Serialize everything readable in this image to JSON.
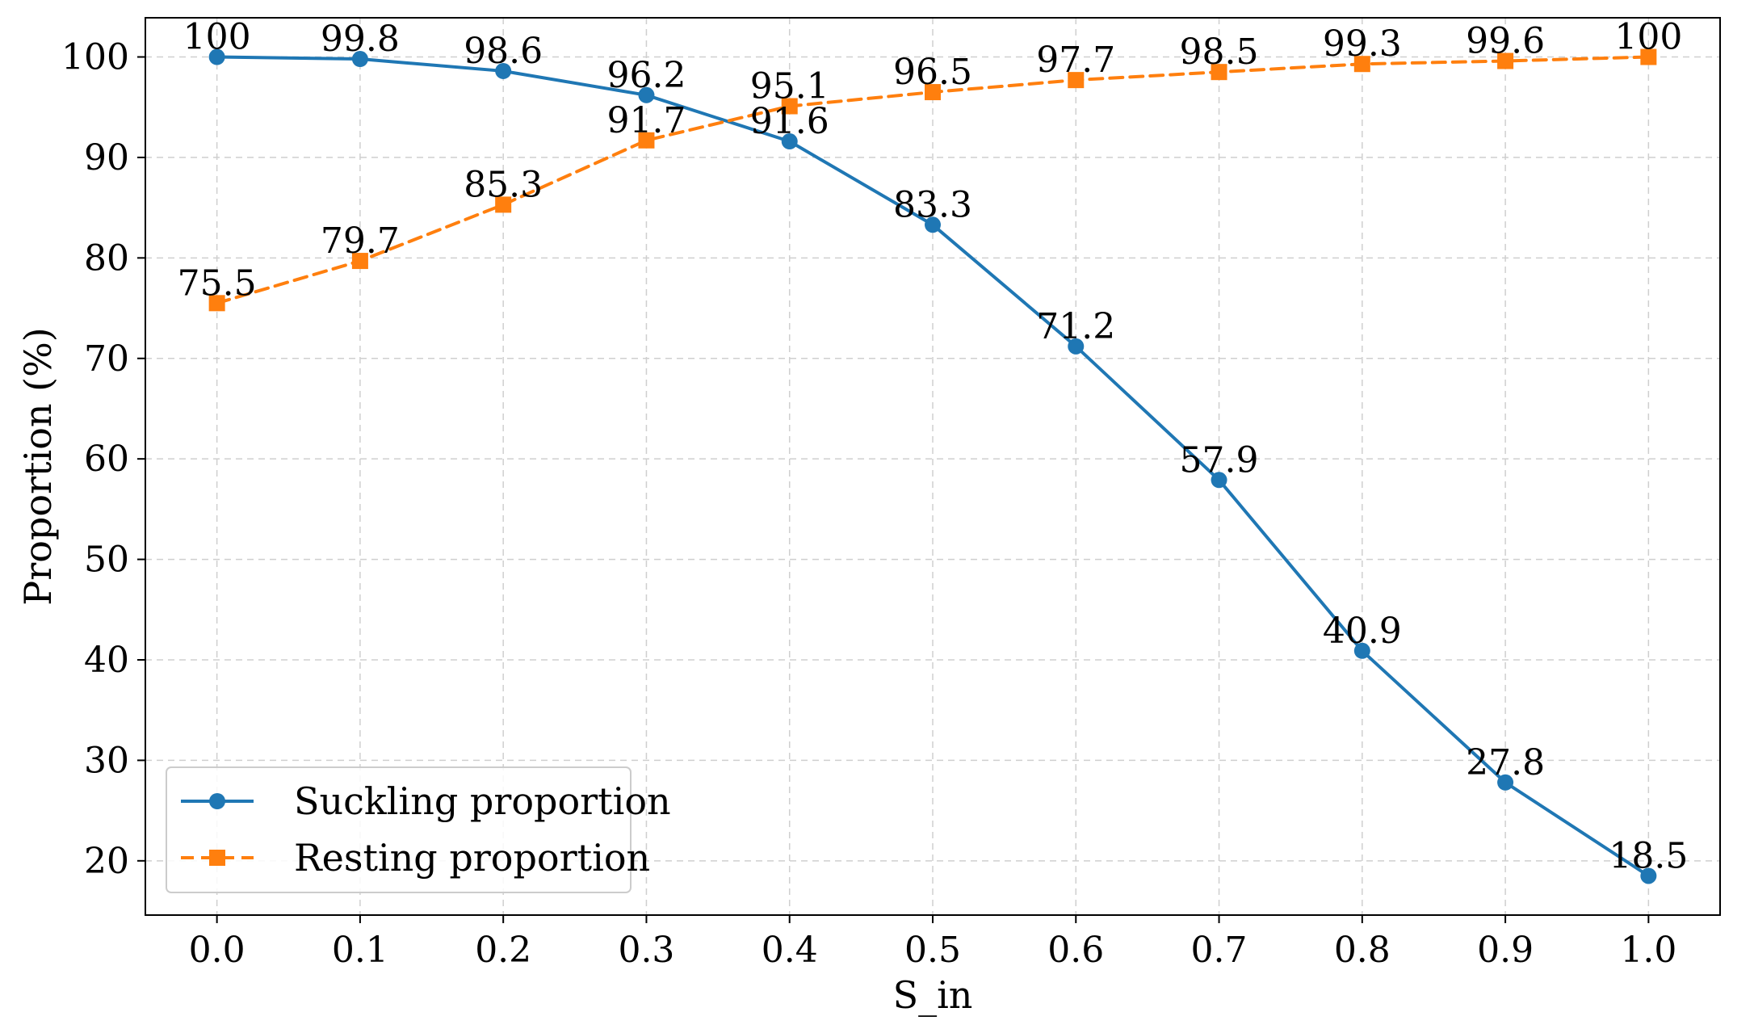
{
  "chart_data": {
    "type": "line",
    "title": "",
    "xlabel": "S_in",
    "ylabel": "Proportion (%)",
    "x": [
      0.0,
      0.1,
      0.2,
      0.3,
      0.4,
      0.5,
      0.6,
      0.7,
      0.8,
      0.9,
      1.0
    ],
    "x_tick_labels": [
      "0.0",
      "0.1",
      "0.2",
      "0.3",
      "0.4",
      "0.5",
      "0.6",
      "0.7",
      "0.8",
      "0.9",
      "1.0"
    ],
    "y_ticks": [
      20,
      30,
      40,
      50,
      60,
      70,
      80,
      90,
      100
    ],
    "y_tick_labels": [
      "20",
      "30",
      "40",
      "50",
      "60",
      "70",
      "80",
      "90",
      "100"
    ],
    "xlim": [
      -0.05,
      1.05
    ],
    "ylim": [
      14.6,
      103.9
    ],
    "grid": true,
    "legend_position": "lower-left",
    "series": [
      {
        "name": "Suckling proportion",
        "color": "#1f77b4",
        "line_style": "solid",
        "marker": "circle",
        "values": [
          100,
          99.8,
          98.6,
          96.2,
          91.6,
          83.3,
          71.2,
          57.9,
          40.9,
          27.8,
          18.5
        ],
        "labels": [
          "100",
          "99.8",
          "98.6",
          "96.2",
          "91.6",
          "83.3",
          "71.2",
          "57.9",
          "40.9",
          "27.8",
          "18.5"
        ]
      },
      {
        "name": "Resting proportion",
        "color": "#ff7f0e",
        "line_style": "dashed",
        "marker": "square",
        "values": [
          75.5,
          79.7,
          85.3,
          91.7,
          95.1,
          96.5,
          97.7,
          98.5,
          99.3,
          99.6,
          100
        ],
        "labels": [
          "75.5",
          "79.7",
          "85.3",
          "91.7",
          "95.1",
          "96.5",
          "97.7",
          "98.5",
          "99.3",
          "99.6",
          "100"
        ]
      }
    ]
  }
}
